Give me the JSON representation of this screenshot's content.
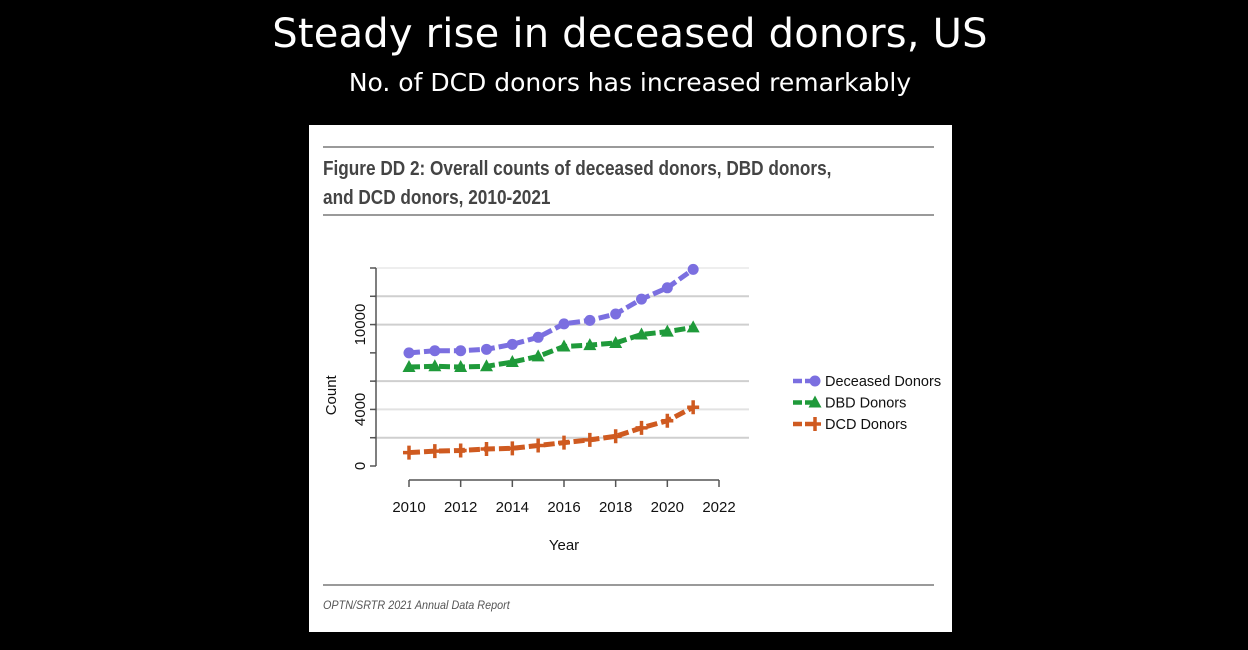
{
  "slide": {
    "title": "Steady rise in deceased donors, US",
    "subtitle": "No. of DCD donors has increased remarkably"
  },
  "figure": {
    "title": "Figure DD 2: Overall counts of deceased donors, DBD donors, and DCD donors, 2010-2021",
    "source": "OPTN/SRTR 2021 Annual Data Report"
  },
  "chart_data": {
    "type": "line",
    "xlabel": "Year",
    "ylabel": "Count",
    "xlim": [
      2010,
      2022
    ],
    "ylim": [
      0,
      14000
    ],
    "x_ticks": [
      2010,
      2012,
      2014,
      2016,
      2018,
      2020,
      2022
    ],
    "y_ticks": [
      0,
      4000,
      10000
    ],
    "grid": "horizontal",
    "legend_position": "right",
    "x": [
      2010,
      2011,
      2012,
      2013,
      2014,
      2015,
      2016,
      2017,
      2018,
      2019,
      2020,
      2021
    ],
    "series": [
      {
        "name": "Deceased Donors",
        "color": "#7b6fe0",
        "marker": "circle",
        "values": [
          8000,
          8150,
          8150,
          8250,
          8600,
          9100,
          10050,
          10300,
          10750,
          11800,
          12600,
          13900
        ]
      },
      {
        "name": "DBD Donors",
        "color": "#1f9a3a",
        "marker": "triangle",
        "values": [
          7000,
          7050,
          7000,
          7050,
          7350,
          7750,
          8450,
          8550,
          8700,
          9300,
          9500,
          9800
        ]
      },
      {
        "name": "DCD Donors",
        "color": "#cf5a20",
        "marker": "plus",
        "values": [
          950,
          1050,
          1100,
          1200,
          1250,
          1450,
          1650,
          1850,
          2100,
          2700,
          3200,
          4150
        ]
      }
    ]
  }
}
